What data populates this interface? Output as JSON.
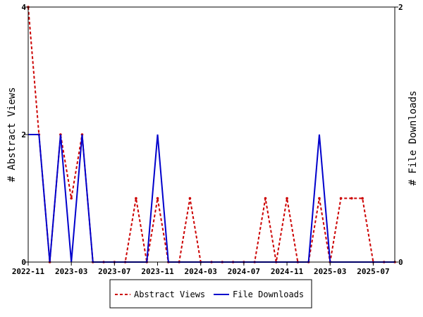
{
  "chart_data": {
    "type": "line",
    "ylabel_left": "# Abstract Views",
    "ylabel_right": "# File Downloads",
    "x_ticks": [
      "2022-11",
      "2023-03",
      "2023-07",
      "2023-11",
      "2024-03",
      "2024-07",
      "2024-11",
      "2025-03",
      "2025-07"
    ],
    "ylim_left": [
      0,
      4
    ],
    "yticks_left": [
      "0",
      "2",
      "4"
    ],
    "ylim_right": [
      0,
      2
    ],
    "yticks_right": [
      "0",
      "2"
    ],
    "grid": false,
    "legend_position": "bottom-center",
    "x": [
      "2022-11",
      "2022-12",
      "2023-01",
      "2023-02",
      "2023-03",
      "2023-04",
      "2023-05",
      "2023-06",
      "2023-07",
      "2023-08",
      "2023-09",
      "2023-10",
      "2023-11",
      "2023-12",
      "2024-01",
      "2024-02",
      "2024-03",
      "2024-04",
      "2024-05",
      "2024-06",
      "2024-07",
      "2024-08",
      "2024-09",
      "2024-10",
      "2024-11",
      "2024-12",
      "2025-01",
      "2025-02",
      "2025-03",
      "2025-04",
      "2025-05",
      "2025-06",
      "2025-07",
      "2025-08",
      "2025-09"
    ],
    "series": [
      {
        "name": "Abstract Views",
        "axis": "left",
        "color": "#cc0000",
        "dash": true,
        "values": [
          4,
          2,
          0,
          2,
          1,
          2,
          0,
          0,
          0,
          0,
          1,
          0,
          1,
          0,
          0,
          1,
          0,
          0,
          0,
          0,
          0,
          0,
          1,
          0,
          1,
          0,
          0,
          1,
          0,
          1,
          1,
          1,
          0,
          0,
          0
        ]
      },
      {
        "name": "File Downloads",
        "axis": "right",
        "color": "#0000cc",
        "dash": false,
        "values": [
          1,
          1,
          0,
          1,
          0,
          1,
          0,
          0,
          0,
          0,
          0,
          0,
          1,
          0,
          0,
          0,
          0,
          0,
          0,
          0,
          0,
          0,
          0,
          0,
          0,
          0,
          0,
          1,
          0,
          0,
          0,
          0,
          0,
          0,
          0
        ]
      }
    ]
  }
}
